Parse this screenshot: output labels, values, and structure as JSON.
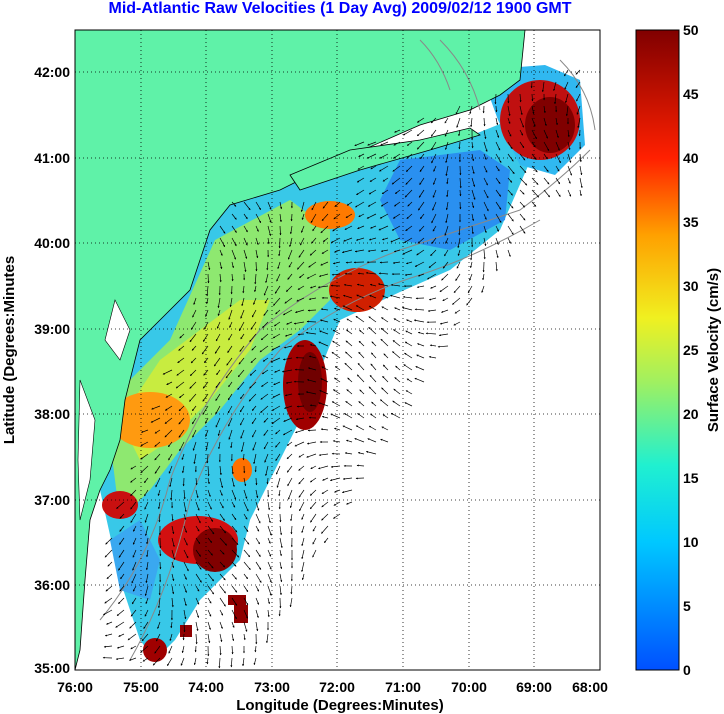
{
  "title": "Mid-Atlantic Raw Velocities (1 Day Avg) 2009/02/12 1900 GMT",
  "x_axis": {
    "label": "Longitude (Degrees:Minutes)",
    "ticks": [
      "76:00",
      "75:00",
      "74:00",
      "73:00",
      "72:00",
      "71:00",
      "70:00",
      "69:00",
      "68:00"
    ]
  },
  "y_axis": {
    "label": "Latitude (Degrees:Minutes",
    "ticks": [
      "42:00",
      "41:00",
      "40:00",
      "39:00",
      "38:00",
      "37:00",
      "36:00",
      "35:00"
    ]
  },
  "colorbar": {
    "label": "Surface Velocity (cm/s)",
    "ticks": [
      "50",
      "45",
      "40",
      "35",
      "30",
      "25",
      "20",
      "15",
      "10",
      "5",
      "0"
    ],
    "range": [
      0,
      50
    ]
  },
  "map": {
    "longitude_range": [
      -76,
      -68
    ],
    "latitude_range": [
      35,
      42.5
    ],
    "grid": "dotted",
    "land_color": "#5ff2a8",
    "ocean_color": "#ffffff"
  }
}
